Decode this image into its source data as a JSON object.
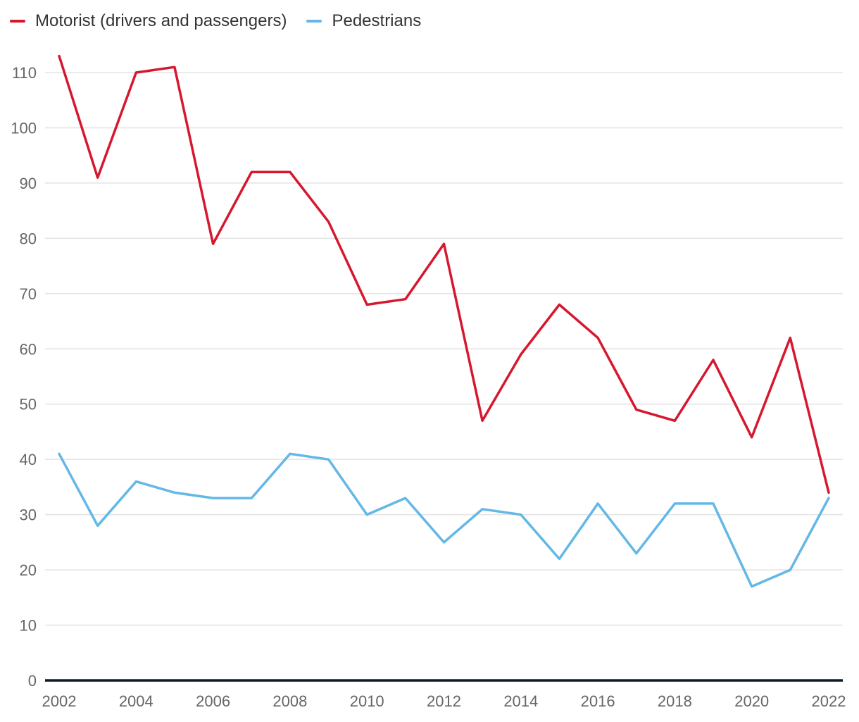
{
  "chart_data": {
    "type": "line",
    "title": "",
    "xlabel": "",
    "ylabel": "",
    "x": [
      2002,
      2003,
      2004,
      2005,
      2006,
      2007,
      2008,
      2009,
      2010,
      2011,
      2012,
      2013,
      2014,
      2015,
      2016,
      2017,
      2018,
      2019,
      2020,
      2021,
      2022
    ],
    "xticks": [
      "2002",
      "2004",
      "2006",
      "2008",
      "2010",
      "2012",
      "2014",
      "2016",
      "2018",
      "2020",
      "2022"
    ],
    "yticks": [
      "0",
      "10",
      "20",
      "30",
      "40",
      "50",
      "60",
      "70",
      "80",
      "90",
      "100",
      "110"
    ],
    "ylim": [
      0,
      115
    ],
    "grid": true,
    "legend_position": "top-left",
    "series": [
      {
        "name": "Motorist (drivers and passengers)",
        "color": "#d6182f",
        "values": [
          113,
          91,
          110,
          111,
          79,
          92,
          92,
          83,
          68,
          69,
          79,
          47,
          59,
          68,
          62,
          49,
          47,
          58,
          44,
          62,
          34
        ]
      },
      {
        "name": "Pedestrians",
        "color": "#63b8e6",
        "values": [
          41,
          28,
          36,
          34,
          33,
          33,
          41,
          40,
          30,
          33,
          25,
          31,
          30,
          22,
          32,
          23,
          32,
          32,
          17,
          20,
          33
        ]
      }
    ]
  }
}
